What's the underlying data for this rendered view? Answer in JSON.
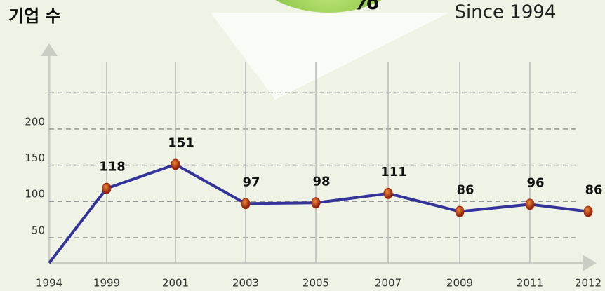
{
  "chart_data": {
    "type": "line",
    "title": "기업 수",
    "annotations": [
      "Since 1994",
      "%"
    ],
    "categories": [
      "1994",
      "1999",
      "2001",
      "2003",
      "2005",
      "2007",
      "2009",
      "2011",
      "2012"
    ],
    "values": [
      15,
      118,
      151,
      97,
      98,
      111,
      86,
      96,
      86
    ],
    "value_labels": [
      null,
      "118",
      "151",
      "97",
      "98",
      "111",
      "86",
      "96",
      "86"
    ],
    "color": "#333399",
    "marker_color": "#a82a10",
    "ylim": [
      15,
      320
    ],
    "yticks": [
      50,
      100,
      150,
      200,
      {
        "value": 250,
        "label": null
      }
    ],
    "grid": true
  }
}
